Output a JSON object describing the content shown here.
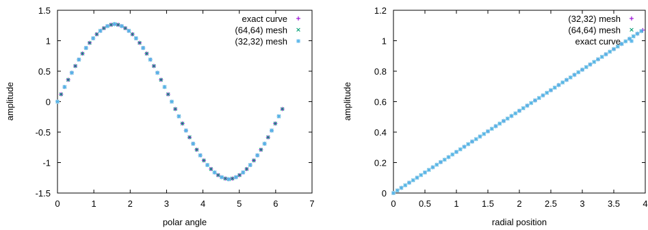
{
  "chart_data": [
    {
      "type": "scatter",
      "xlabel": "polar angle",
      "ylabel": "amplitude",
      "xlim": [
        0,
        7
      ],
      "ylim": [
        -1.5,
        1.5
      ],
      "x_ticks": [
        "0",
        "1",
        "2",
        "3",
        "4",
        "5",
        "6",
        "7"
      ],
      "y_ticks": [
        "1.5",
        "1",
        "0.5",
        "0",
        "-0.5",
        "-1",
        "-1.5"
      ],
      "grid": false,
      "legend_position": "top-right",
      "series": [
        {
          "name": "exact curve",
          "marker": "plus",
          "color": "#9400d3",
          "x": [
            0.0,
            0.1,
            0.196,
            0.295,
            0.393,
            0.491,
            0.589,
            0.687,
            0.785,
            0.884,
            0.982,
            1.08,
            1.178,
            1.276,
            1.374,
            1.473,
            1.571,
            1.669,
            1.767,
            1.865,
            1.963,
            2.062,
            2.16,
            2.258,
            2.356,
            2.454,
            2.553,
            2.651,
            2.749,
            2.847,
            2.945,
            3.043,
            3.142,
            3.24,
            3.338,
            3.436,
            3.534,
            3.632,
            3.731,
            3.829,
            3.927,
            4.025,
            4.123,
            4.222,
            4.32,
            4.418,
            4.516,
            4.614,
            4.712,
            4.811,
            4.909,
            5.007,
            5.105,
            5.203,
            5.301,
            5.4,
            5.498,
            5.596,
            5.694,
            5.792,
            5.89,
            5.989,
            6.087,
            6.185
          ],
          "y": [
            0.0,
            0.121,
            0.241,
            0.359,
            0.474,
            0.585,
            0.69,
            0.789,
            0.881,
            0.965,
            1.04,
            1.106,
            1.162,
            1.206,
            1.24,
            1.262,
            1.273,
            1.262,
            1.24,
            1.206,
            1.162,
            1.106,
            1.04,
            0.965,
            0.881,
            0.789,
            0.69,
            0.585,
            0.474,
            0.359,
            0.241,
            0.121,
            0.0,
            -0.121,
            -0.241,
            -0.359,
            -0.474,
            -0.585,
            -0.69,
            -0.789,
            -0.881,
            -0.965,
            -1.04,
            -1.106,
            -1.162,
            -1.206,
            -1.24,
            -1.262,
            -1.273,
            -1.262,
            -1.24,
            -1.206,
            -1.162,
            -1.106,
            -1.04,
            -0.965,
            -0.881,
            -0.789,
            -0.69,
            -0.585,
            -0.474,
            -0.359,
            -0.241,
            -0.121
          ]
        },
        {
          "name": "(64,64) mesh",
          "marker": "cross",
          "color": "#009e73",
          "x": [
            0.0,
            0.1,
            0.196,
            0.295,
            0.393,
            0.491,
            0.589,
            0.687,
            0.785,
            0.884,
            0.982,
            1.08,
            1.178,
            1.276,
            1.374,
            1.473,
            1.571,
            1.669,
            1.767,
            1.865,
            1.963,
            2.062,
            2.16,
            2.258,
            2.356,
            2.454,
            2.553,
            2.651,
            2.749,
            2.847,
            2.945,
            3.043,
            3.142,
            3.24,
            3.338,
            3.436,
            3.534,
            3.632,
            3.731,
            3.829,
            3.927,
            4.025,
            4.123,
            4.222,
            4.32,
            4.418,
            4.516,
            4.614,
            4.712,
            4.811,
            4.909,
            5.007,
            5.105,
            5.203,
            5.301,
            5.4,
            5.498,
            5.596,
            5.694,
            5.792,
            5.89,
            5.989,
            6.087,
            6.185
          ],
          "y": [
            0.0,
            0.121,
            0.241,
            0.359,
            0.474,
            0.585,
            0.69,
            0.789,
            0.881,
            0.965,
            1.04,
            1.106,
            1.162,
            1.206,
            1.24,
            1.262,
            1.273,
            1.262,
            1.24,
            1.206,
            1.162,
            1.106,
            1.04,
            0.965,
            0.881,
            0.789,
            0.69,
            0.585,
            0.474,
            0.359,
            0.241,
            0.121,
            0.0,
            -0.121,
            -0.241,
            -0.359,
            -0.474,
            -0.585,
            -0.69,
            -0.789,
            -0.881,
            -0.965,
            -1.04,
            -1.106,
            -1.162,
            -1.206,
            -1.24,
            -1.262,
            -1.273,
            -1.262,
            -1.24,
            -1.206,
            -1.162,
            -1.106,
            -1.04,
            -0.965,
            -0.881,
            -0.789,
            -0.69,
            -0.585,
            -0.474,
            -0.359,
            -0.241,
            -0.121
          ]
        },
        {
          "name": "(32,32) mesh",
          "marker": "star",
          "color": "#56b4e9",
          "x": [
            0.0,
            0.196,
            0.393,
            0.589,
            0.785,
            0.982,
            1.178,
            1.374,
            1.571,
            1.767,
            1.963,
            2.16,
            2.356,
            2.553,
            2.749,
            2.945,
            3.142,
            3.338,
            3.534,
            3.731,
            3.927,
            4.123,
            4.32,
            4.516,
            4.712,
            4.909,
            5.105,
            5.301,
            5.498,
            5.694,
            5.89,
            6.087
          ],
          "y": [
            0.0,
            0.241,
            0.474,
            0.69,
            0.881,
            1.04,
            1.162,
            1.24,
            1.273,
            1.24,
            1.162,
            1.04,
            0.881,
            0.69,
            0.474,
            0.241,
            0.0,
            -0.241,
            -0.474,
            -0.69,
            -0.881,
            -1.04,
            -1.162,
            -1.24,
            -1.273,
            -1.24,
            -1.162,
            -1.04,
            -0.881,
            -0.69,
            -0.474,
            -0.241
          ]
        }
      ]
    },
    {
      "type": "scatter",
      "xlabel": "radial position",
      "ylabel": "amplitude",
      "xlim": [
        0,
        4
      ],
      "ylim": [
        0,
        1.2
      ],
      "x_ticks": [
        "0",
        "0.5",
        "1",
        "1.5",
        "2",
        "2.5",
        "3",
        "3.5",
        "4"
      ],
      "y_ticks": [
        "1.2",
        "1",
        "0.8",
        "0.6",
        "0.4",
        "0.2",
        "0"
      ],
      "grid": false,
      "legend_position": "top-right",
      "series": [
        {
          "name": "(32,32) mesh",
          "marker": "plus",
          "color": "#9400d3",
          "x": [
            0.0,
            0.125,
            0.25,
            0.375,
            0.5,
            0.625,
            0.75,
            0.875,
            1.0,
            1.125,
            1.25,
            1.375,
            1.5,
            1.625,
            1.75,
            1.875,
            2.0,
            2.125,
            2.25,
            2.375,
            2.5,
            2.625,
            2.75,
            2.875,
            3.0,
            3.125,
            3.25,
            3.375,
            3.5,
            3.625,
            3.75,
            3.875,
            3.96
          ],
          "y": [
            0.0,
            0.034,
            0.068,
            0.101,
            0.135,
            0.169,
            0.203,
            0.236,
            0.27,
            0.304,
            0.338,
            0.371,
            0.405,
            0.439,
            0.473,
            0.506,
            0.54,
            0.574,
            0.608,
            0.641,
            0.675,
            0.709,
            0.743,
            0.776,
            0.81,
            0.844,
            0.878,
            0.911,
            0.945,
            0.979,
            1.013,
            1.046,
            1.07
          ]
        },
        {
          "name": "(64,64) mesh",
          "marker": "cross",
          "color": "#009e73",
          "x": [
            0.0,
            0.0625,
            0.125,
            0.1875,
            0.25,
            0.3125,
            0.375,
            0.4375,
            0.5,
            0.5625,
            0.625,
            0.6875,
            0.75,
            0.8125,
            0.875,
            0.9375,
            1.0,
            1.0625,
            1.125,
            1.1875,
            1.25,
            1.3125,
            1.375,
            1.4375,
            1.5,
            1.5625,
            1.625,
            1.6875,
            1.75,
            1.8125,
            1.875,
            1.9375,
            2.0,
            2.0625,
            2.125,
            2.1875,
            2.25,
            2.3125,
            2.375,
            2.4375,
            2.5,
            2.5625,
            2.625,
            2.6875,
            2.75,
            2.8125,
            2.875,
            2.9375,
            3.0,
            3.0625,
            3.125,
            3.1875,
            3.25,
            3.3125,
            3.375,
            3.4375,
            3.5,
            3.5625,
            3.625,
            3.6875,
            3.75,
            3.8125,
            3.875,
            3.9375
          ],
          "y": [
            0.0,
            0.017,
            0.034,
            0.051,
            0.068,
            0.084,
            0.101,
            0.118,
            0.135,
            0.152,
            0.169,
            0.186,
            0.203,
            0.219,
            0.236,
            0.253,
            0.27,
            0.287,
            0.304,
            0.321,
            0.338,
            0.354,
            0.371,
            0.388,
            0.405,
            0.422,
            0.439,
            0.456,
            0.473,
            0.489,
            0.506,
            0.523,
            0.54,
            0.557,
            0.574,
            0.591,
            0.608,
            0.624,
            0.641,
            0.658,
            0.675,
            0.692,
            0.709,
            0.726,
            0.743,
            0.759,
            0.776,
            0.793,
            0.81,
            0.827,
            0.844,
            0.861,
            0.878,
            0.894,
            0.911,
            0.928,
            0.945,
            0.962,
            0.979,
            0.996,
            1.013,
            1.029,
            1.046,
            1.063
          ]
        },
        {
          "name": "exact curve",
          "marker": "star",
          "color": "#56b4e9",
          "x": [
            0.0,
            0.0625,
            0.125,
            0.1875,
            0.25,
            0.3125,
            0.375,
            0.4375,
            0.5,
            0.5625,
            0.625,
            0.6875,
            0.75,
            0.8125,
            0.875,
            0.9375,
            1.0,
            1.0625,
            1.125,
            1.1875,
            1.25,
            1.3125,
            1.375,
            1.4375,
            1.5,
            1.5625,
            1.625,
            1.6875,
            1.75,
            1.8125,
            1.875,
            1.9375,
            2.0,
            2.0625,
            2.125,
            2.1875,
            2.25,
            2.3125,
            2.375,
            2.4375,
            2.5,
            2.5625,
            2.625,
            2.6875,
            2.75,
            2.8125,
            2.875,
            2.9375,
            3.0,
            3.0625,
            3.125,
            3.1875,
            3.25,
            3.3125,
            3.375,
            3.4375,
            3.5,
            3.5625,
            3.625,
            3.6875,
            3.75,
            3.8125,
            3.875,
            3.9375
          ],
          "y": [
            0.0,
            0.017,
            0.034,
            0.051,
            0.068,
            0.084,
            0.101,
            0.118,
            0.135,
            0.152,
            0.169,
            0.186,
            0.203,
            0.219,
            0.236,
            0.253,
            0.27,
            0.287,
            0.304,
            0.321,
            0.338,
            0.354,
            0.371,
            0.388,
            0.405,
            0.422,
            0.439,
            0.456,
            0.473,
            0.489,
            0.506,
            0.523,
            0.54,
            0.557,
            0.574,
            0.591,
            0.608,
            0.624,
            0.641,
            0.658,
            0.675,
            0.692,
            0.709,
            0.726,
            0.743,
            0.759,
            0.776,
            0.793,
            0.81,
            0.827,
            0.844,
            0.861,
            0.878,
            0.894,
            0.911,
            0.928,
            0.945,
            0.962,
            0.979,
            0.996,
            1.013,
            1.029,
            1.046,
            1.063
          ]
        }
      ]
    }
  ]
}
